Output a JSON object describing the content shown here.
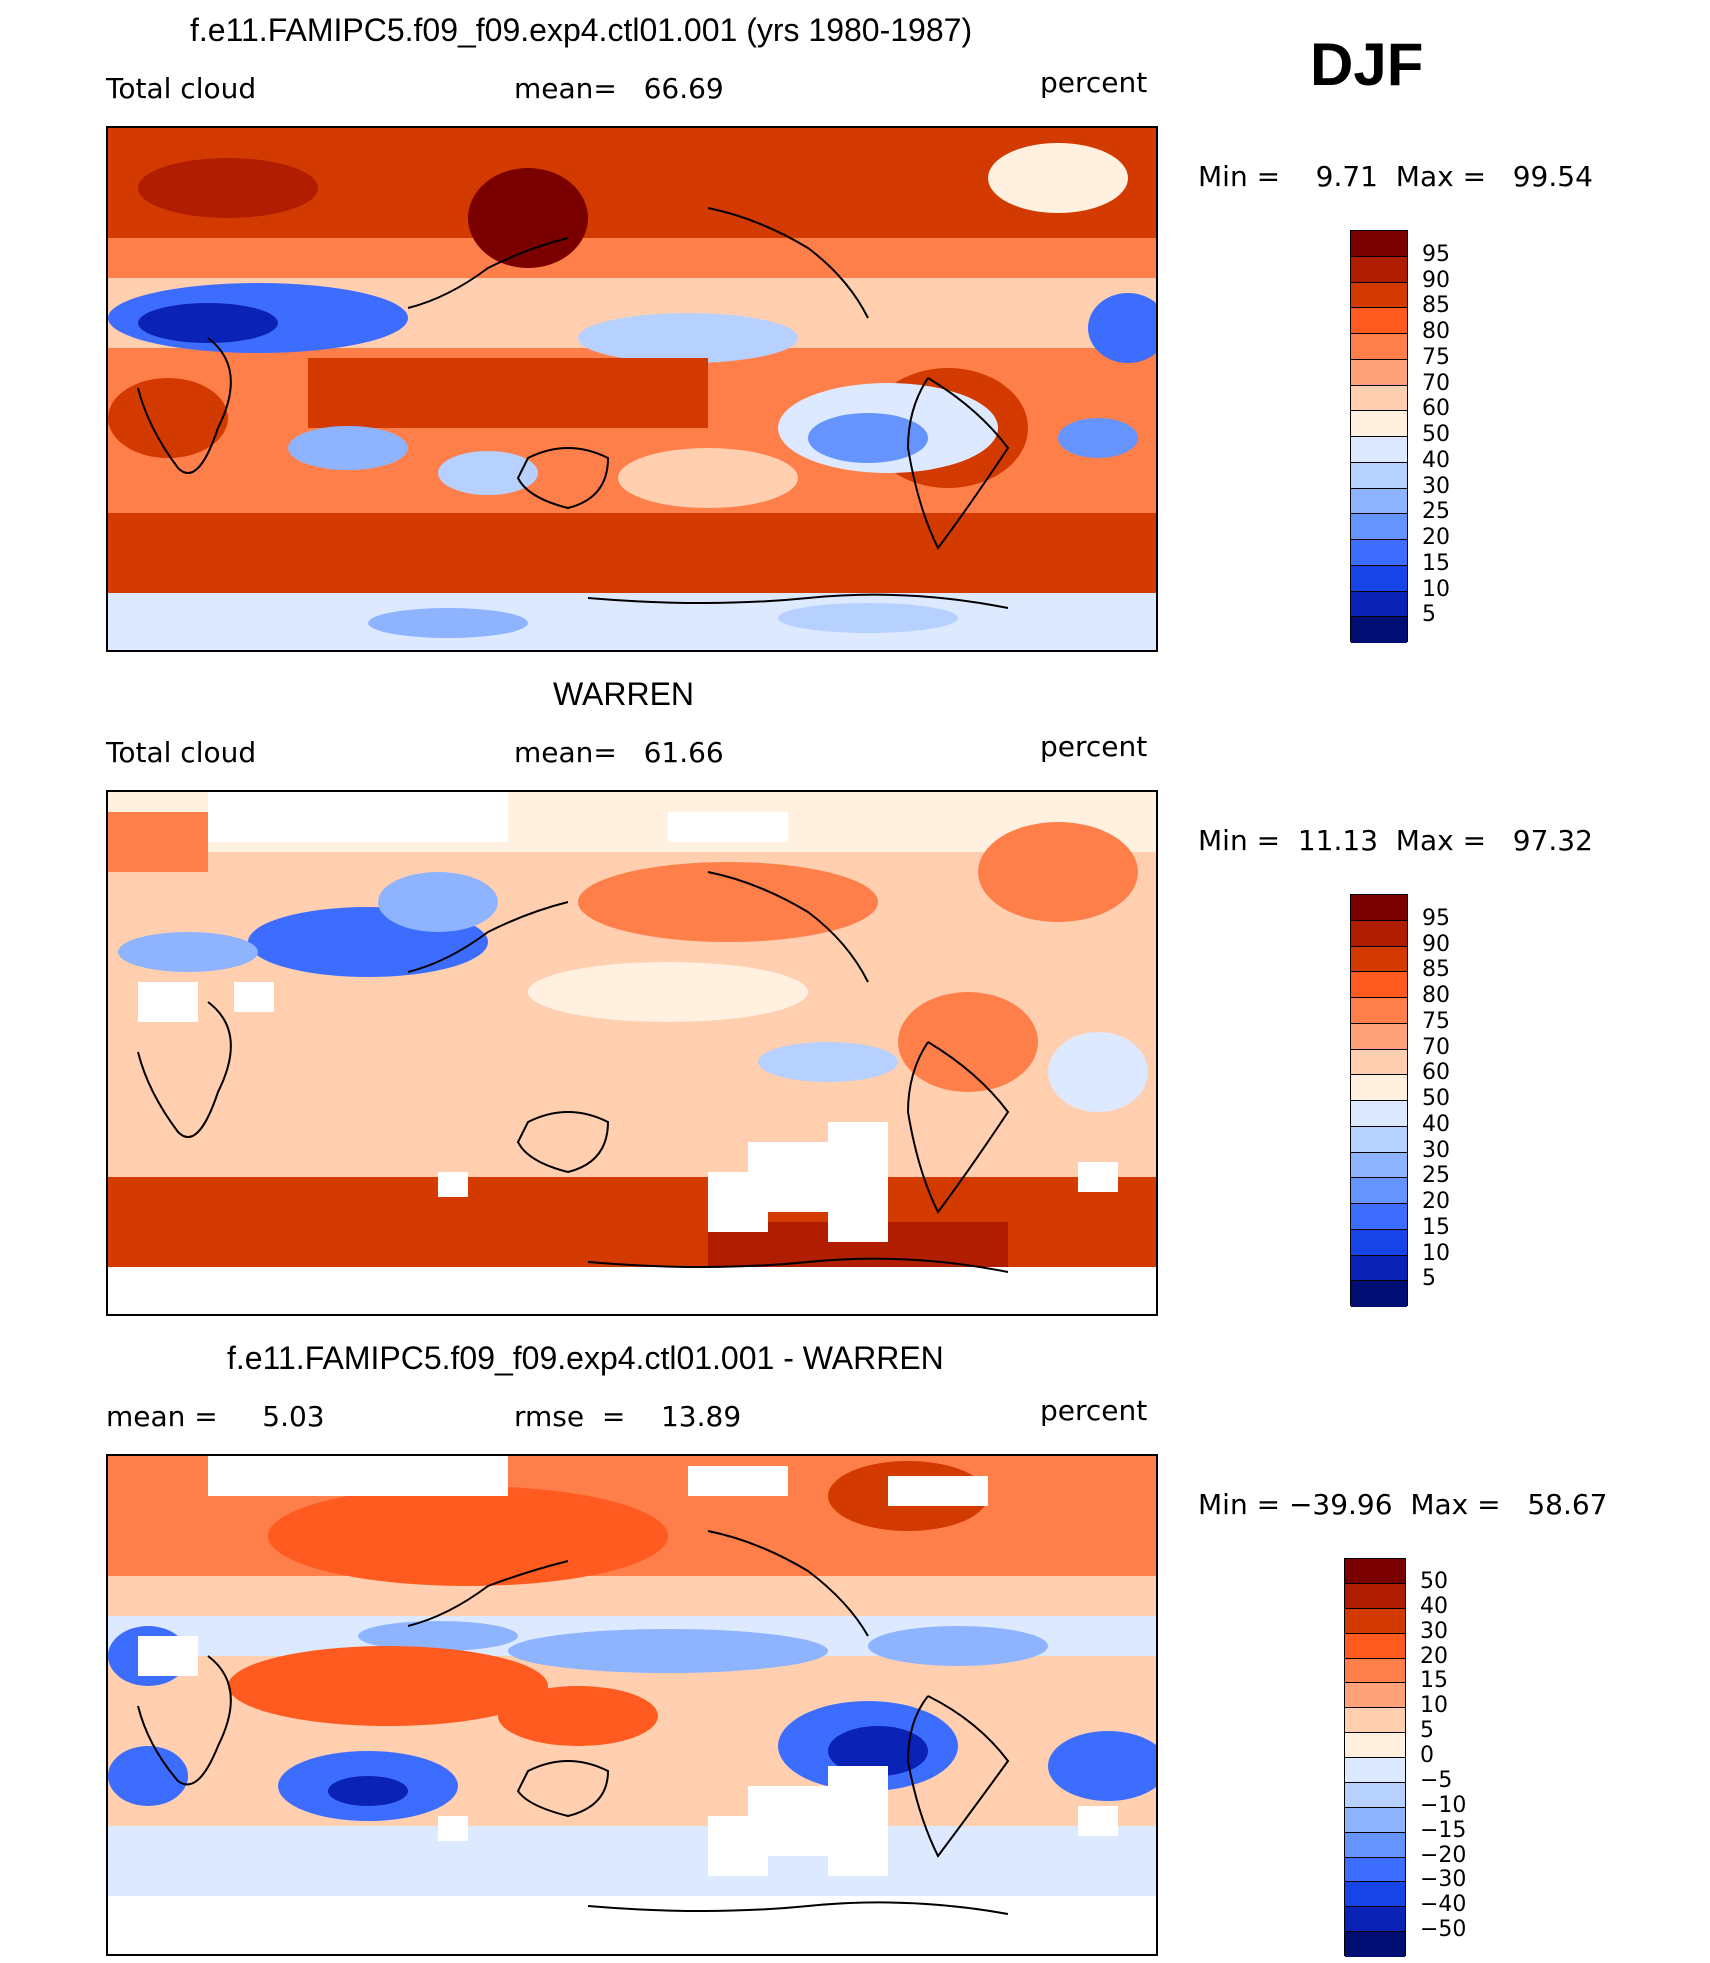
{
  "season": "DJF",
  "panels": [
    {
      "title": "f.e11.FAMIPC5.f09_f09.exp4.ctl01.001 (yrs 1980-1987)",
      "left_text": "Total cloud",
      "center_text": "mean=   66.69",
      "right_text": "percent",
      "minmax": "Min =    9.71  Max =   99.54",
      "colorbar_labels": [
        "95",
        "90",
        "85",
        "80",
        "75",
        "70",
        "60",
        "50",
        "40",
        "30",
        "25",
        "20",
        "15",
        "10",
        "5"
      ],
      "colorbar_colors": [
        "#7a0000",
        "#b01d00",
        "#d33a00",
        "#ff5a1f",
        "#ff7f4a",
        "#ffa27a",
        "#ffcfb0",
        "#fff0e0",
        "#dce9ff",
        "#b6d0ff",
        "#8fb4ff",
        "#6694ff",
        "#3d6dff",
        "#1644e6",
        "#0a22b5",
        "#000e73"
      ]
    },
    {
      "title": "WARREN",
      "left_text": "Total cloud",
      "center_text": "mean=   61.66",
      "right_text": "percent",
      "minmax": "Min =  11.13  Max =   97.32",
      "colorbar_labels": [
        "95",
        "90",
        "85",
        "80",
        "75",
        "70",
        "60",
        "50",
        "40",
        "30",
        "25",
        "20",
        "15",
        "10",
        "5"
      ],
      "colorbar_colors": [
        "#7a0000",
        "#b01d00",
        "#d33a00",
        "#ff5a1f",
        "#ff7f4a",
        "#ffa27a",
        "#ffcfb0",
        "#fff0e0",
        "#dce9ff",
        "#b6d0ff",
        "#8fb4ff",
        "#6694ff",
        "#3d6dff",
        "#1644e6",
        "#0a22b5",
        "#000e73"
      ]
    },
    {
      "title": "f.e11.FAMIPC5.f09_f09.exp4.ctl01.001 - WARREN",
      "left_text": "mean =     5.03",
      "center_text": "rmse  =    13.89",
      "right_text": "percent",
      "minmax": "Min = −39.96  Max =   58.67",
      "colorbar_labels": [
        "50",
        "40",
        "30",
        "20",
        "15",
        "10",
        "5",
        "0",
        "−5",
        "−10",
        "−15",
        "−20",
        "−30",
        "−40",
        "−50"
      ],
      "colorbar_colors": [
        "#7a0000",
        "#b01d00",
        "#d33a00",
        "#ff5a1f",
        "#ff7f4a",
        "#ffa27a",
        "#ffcfb0",
        "#fff0e0",
        "#dce9ff",
        "#b6d0ff",
        "#8fb4ff",
        "#6694ff",
        "#3d6dff",
        "#1644e6",
        "#0a22b5",
        "#000e73"
      ]
    }
  ]
}
